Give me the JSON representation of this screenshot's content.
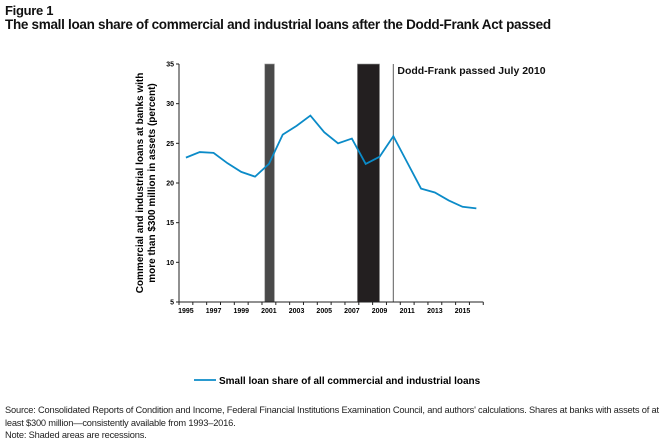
{
  "figure_label": "Figure 1",
  "title": "The small loan share of commercial and industrial loans after the Dodd-Frank Act passed",
  "source": "Source: Consolidated Reports of Condition and Income, Federal Financial Institutions Examination Council, and authors' calculations. Shares at banks with assets of at least $300 million—consistently available from 1993–2016.",
  "note": "Note: Shaded areas are recessions.",
  "chart_data": {
    "type": "line",
    "title": "The small loan share of commercial and industrial loans after the Dodd-Frank Act passed",
    "xlabel": "",
    "ylabel": "Commercial and industrial loans at banks with more than $300 million in assets (percent)",
    "ylim": [
      5,
      35
    ],
    "xlim": [
      1995,
      2017
    ],
    "yticks": [
      5,
      10,
      15,
      20,
      25,
      30,
      35
    ],
    "xtick_labels": [
      "1995",
      "1997",
      "1999",
      "2001",
      "2003",
      "2005",
      "2007",
      "2009",
      "2011",
      "2013",
      "2015"
    ],
    "grid": false,
    "legend_placement": "bottom",
    "series": [
      {
        "name": "Small loan share of all commercial and industrial loans",
        "color": "#0b8bc8",
        "x": [
          1995,
          1996,
          1997,
          1998,
          1999,
          2000,
          2001,
          2002,
          2003,
          2004,
          2005,
          2006,
          2007,
          2008,
          2009,
          2010,
          2011,
          2012,
          2013,
          2014,
          2015,
          2016
        ],
        "values": [
          23.2,
          23.9,
          23.8,
          22.5,
          21.4,
          20.8,
          22.4,
          26.1,
          27.2,
          28.5,
          26.4,
          25.0,
          25.6,
          22.4,
          23.3,
          25.9,
          22.6,
          19.3,
          18.8,
          17.8,
          17.0,
          16.8
        ]
      }
    ],
    "recessions": [
      {
        "start": 2001.2,
        "end": 2001.9,
        "color": "#4a4a4a"
      },
      {
        "start": 2007.9,
        "end": 2009.5,
        "color": "#231f20"
      }
    ],
    "annotations": [
      {
        "x": 2010.5,
        "text": "Dodd-Frank passed July 2010"
      }
    ]
  }
}
